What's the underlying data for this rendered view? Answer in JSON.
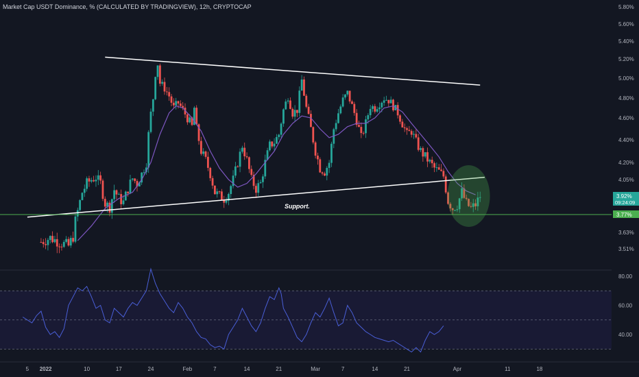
{
  "header": {
    "title": "Market Cap USDT Dominance, % (CALCULATED BY TRADINGVIEW), 12h, CRYPTOCAP"
  },
  "colors": {
    "background": "#131722",
    "bull": "#26a69a",
    "bear": "#ef5350",
    "ma": "#7e57c2",
    "trendline": "#ffffff",
    "support": "#4caf50",
    "highlight": "#4caf50",
    "rsi": "#4a5fd8",
    "rsi_band": "#1c1c3a"
  },
  "chart_data": [
    {
      "type": "candlestick",
      "title": "Market Cap USDT Dominance, % (CALCULATED BY TRADINGVIEW), 12h, CRYPTOCAP",
      "ylim": [
        3.45,
        5.85
      ],
      "y_ticks": [
        "5.80%",
        "5.60%",
        "5.40%",
        "5.20%",
        "5.00%",
        "4.80%",
        "4.60%",
        "4.40%",
        "4.20%",
        "4.05%",
        "3.63%",
        "3.51%"
      ],
      "x_ticks": [
        "5",
        "2022",
        "10",
        "17",
        "24",
        "Feb",
        "7",
        "14",
        "21",
        "Mar",
        "7",
        "14",
        "21",
        "Apr",
        "11",
        "18"
      ],
      "x_tick_days": [
        -27,
        -23,
        -14,
        -7,
        0,
        8,
        14,
        21,
        28,
        36,
        42,
        49,
        56,
        67,
        78,
        85
      ],
      "close_series_points": [
        [
          -24,
          3.56
        ],
        [
          -22,
          3.59
        ],
        [
          -20,
          3.56
        ],
        [
          -18,
          3.53
        ],
        [
          -17,
          3.6
        ],
        [
          -16.5,
          3.72
        ],
        [
          -15,
          3.95
        ],
        [
          -14,
          4.02
        ],
        [
          -13,
          4.05
        ],
        [
          -12,
          4.07
        ],
        [
          -11,
          4.02
        ],
        [
          -10,
          3.86
        ],
        [
          -9,
          3.83
        ],
        [
          -8,
          3.97
        ],
        [
          -7,
          3.9
        ],
        [
          -6,
          3.87
        ],
        [
          -5,
          3.98
        ],
        [
          -4,
          4.06
        ],
        [
          -3,
          4.02
        ],
        [
          -2,
          4.1
        ],
        [
          -1,
          4.2
        ],
        [
          -0.3,
          4.55
        ],
        [
          0.5,
          4.8
        ],
        [
          1,
          5.05
        ],
        [
          1.5,
          5.15
        ],
        [
          2,
          4.95
        ],
        [
          3,
          4.9
        ],
        [
          4,
          4.82
        ],
        [
          5,
          4.7
        ],
        [
          6,
          4.75
        ],
        [
          7,
          4.68
        ],
        [
          8,
          4.6
        ],
        [
          9,
          4.52
        ],
        [
          9.5,
          4.7
        ],
        [
          10,
          4.5
        ],
        [
          11,
          4.3
        ],
        [
          12,
          4.22
        ],
        [
          13,
          4.1
        ],
        [
          14,
          3.95
        ],
        [
          15,
          3.92
        ],
        [
          16,
          3.9
        ],
        [
          17,
          3.95
        ],
        [
          18,
          4.05
        ],
        [
          19,
          4.2
        ],
        [
          20,
          4.35
        ],
        [
          21,
          4.22
        ],
        [
          22,
          4.05
        ],
        [
          23,
          3.98
        ],
        [
          24,
          4.02
        ],
        [
          25,
          4.2
        ],
        [
          26,
          4.35
        ],
        [
          27,
          4.38
        ],
        [
          28,
          4.45
        ],
        [
          29,
          4.68
        ],
        [
          30,
          4.82
        ],
        [
          31,
          4.65
        ],
        [
          32,
          4.68
        ],
        [
          33,
          4.98
        ],
        [
          34,
          4.7
        ],
        [
          35,
          4.5
        ],
        [
          36,
          4.3
        ],
        [
          37,
          4.15
        ],
        [
          38,
          4.12
        ],
        [
          39,
          4.2
        ],
        [
          40,
          4.5
        ],
        [
          41,
          4.65
        ],
        [
          42,
          4.78
        ],
        [
          43,
          4.85
        ],
        [
          44,
          4.72
        ],
        [
          45,
          4.58
        ],
        [
          46,
          4.42
        ],
        [
          47,
          4.55
        ],
        [
          48,
          4.72
        ],
        [
          49,
          4.7
        ],
        [
          50,
          4.75
        ],
        [
          51,
          4.8
        ],
        [
          52,
          4.78
        ],
        [
          53,
          4.72
        ],
        [
          54,
          4.65
        ],
        [
          55,
          4.55
        ],
        [
          56,
          4.45
        ],
        [
          57,
          4.48
        ],
        [
          58,
          4.38
        ],
        [
          59,
          4.3
        ],
        [
          60,
          4.25
        ],
        [
          61,
          4.2
        ],
        [
          62,
          4.15
        ],
        [
          63,
          4.12
        ],
        [
          64,
          4.08
        ],
        [
          65,
          3.88
        ],
        [
          66,
          3.82
        ],
        [
          67,
          3.85
        ],
        [
          68,
          3.95
        ],
        [
          69,
          3.86
        ],
        [
          70,
          3.82
        ],
        [
          71,
          3.85
        ],
        [
          72,
          3.92
        ]
      ],
      "candle_days_range": [
        -24,
        72
      ],
      "candles_per_day": 2,
      "moving_average": {
        "points": [
          [
            -16,
            3.57
          ],
          [
            -13,
            3.68
          ],
          [
            -10,
            3.82
          ],
          [
            -7,
            3.9
          ],
          [
            -4,
            3.95
          ],
          [
            -2,
            4.05
          ],
          [
            0,
            4.2
          ],
          [
            2,
            4.45
          ],
          [
            4,
            4.65
          ],
          [
            5.5,
            4.72
          ],
          [
            7,
            4.7
          ],
          [
            9,
            4.6
          ],
          [
            11,
            4.48
          ],
          [
            13,
            4.3
          ],
          [
            15,
            4.15
          ],
          [
            17,
            4.05
          ],
          [
            19,
            3.99
          ],
          [
            21,
            4.02
          ],
          [
            23,
            4.1
          ],
          [
            25,
            4.2
          ],
          [
            27,
            4.3
          ],
          [
            29,
            4.45
          ],
          [
            31,
            4.55
          ],
          [
            33,
            4.62
          ],
          [
            35,
            4.6
          ],
          [
            37,
            4.5
          ],
          [
            39,
            4.42
          ],
          [
            41,
            4.45
          ],
          [
            43,
            4.52
          ],
          [
            45,
            4.55
          ],
          [
            47,
            4.55
          ],
          [
            49,
            4.6
          ],
          [
            51,
            4.7
          ],
          [
            53,
            4.72
          ],
          [
            55,
            4.66
          ],
          [
            57,
            4.55
          ],
          [
            59,
            4.45
          ],
          [
            61,
            4.35
          ],
          [
            63,
            4.25
          ],
          [
            65,
            4.12
          ],
          [
            67,
            4.02
          ],
          [
            69,
            3.96
          ],
          [
            71,
            3.93
          ]
        ]
      },
      "resistance_line": [
        [
          -10,
          5.22
        ],
        [
          72,
          4.93
        ]
      ],
      "support_line": [
        [
          -27,
          3.75
        ],
        [
          73,
          4.07
        ]
      ],
      "horizontal_line_value": 3.77,
      "highlight_center": [
        69.5,
        3.92
      ],
      "annotation": "Support.",
      "annotation_at": [
        32,
        3.82
      ],
      "price_labels": [
        {
          "value": 3.92,
          "text": "3.92%",
          "countdown": "09:24:09",
          "color": "#26a69a"
        },
        {
          "value": 3.77,
          "text": "3.77%",
          "color": "#4caf50"
        }
      ]
    },
    {
      "type": "line",
      "name": "RSI",
      "ylim": [
        25,
        90
      ],
      "y_ticks": [
        "80.00",
        "60.00",
        "40.00"
      ],
      "bands": [
        30,
        50,
        70
      ],
      "points": [
        [
          -28,
          52
        ],
        [
          -26,
          48
        ],
        [
          -25,
          53
        ],
        [
          -24,
          56
        ],
        [
          -23,
          45
        ],
        [
          -22,
          40
        ],
        [
          -21,
          42
        ],
        [
          -20,
          38
        ],
        [
          -19,
          44
        ],
        [
          -18,
          60
        ],
        [
          -17,
          66
        ],
        [
          -16,
          72
        ],
        [
          -15,
          70
        ],
        [
          -14,
          73
        ],
        [
          -13,
          66
        ],
        [
          -12,
          58
        ],
        [
          -11,
          60
        ],
        [
          -10,
          50
        ],
        [
          -9,
          48
        ],
        [
          -8,
          58
        ],
        [
          -7,
          55
        ],
        [
          -6,
          52
        ],
        [
          -5,
          58
        ],
        [
          -4,
          62
        ],
        [
          -3,
          60
        ],
        [
          -2,
          65
        ],
        [
          -1,
          70
        ],
        [
          0,
          85
        ],
        [
          0.5,
          80
        ],
        [
          1,
          75
        ],
        [
          2,
          68
        ],
        [
          3,
          63
        ],
        [
          4,
          58
        ],
        [
          5,
          55
        ],
        [
          6,
          62
        ],
        [
          7,
          58
        ],
        [
          8,
          52
        ],
        [
          9,
          48
        ],
        [
          10,
          42
        ],
        [
          11,
          38
        ],
        [
          12,
          37
        ],
        [
          13,
          33
        ],
        [
          14,
          31
        ],
        [
          15,
          32
        ],
        [
          16,
          30
        ],
        [
          17,
          40
        ],
        [
          18,
          45
        ],
        [
          19,
          50
        ],
        [
          20,
          58
        ],
        [
          21,
          52
        ],
        [
          22,
          46
        ],
        [
          23,
          42
        ],
        [
          24,
          48
        ],
        [
          25,
          58
        ],
        [
          26,
          66
        ],
        [
          27,
          64
        ],
        [
          28,
          72
        ],
        [
          28.5,
          68
        ],
        [
          29,
          58
        ],
        [
          30,
          52
        ],
        [
          31,
          45
        ],
        [
          32,
          38
        ],
        [
          33,
          35
        ],
        [
          34,
          40
        ],
        [
          35,
          48
        ],
        [
          36,
          55
        ],
        [
          37,
          52
        ],
        [
          38,
          58
        ],
        [
          39,
          65
        ],
        [
          40,
          55
        ],
        [
          41,
          46
        ],
        [
          42,
          48
        ],
        [
          43,
          60
        ],
        [
          44,
          55
        ],
        [
          45,
          48
        ],
        [
          46,
          45
        ],
        [
          47,
          42
        ],
        [
          48,
          40
        ],
        [
          49,
          38
        ],
        [
          50,
          37
        ],
        [
          51,
          36
        ],
        [
          52,
          35
        ],
        [
          53,
          36
        ],
        [
          54,
          34
        ],
        [
          55,
          32
        ],
        [
          56,
          30
        ],
        [
          57,
          28
        ],
        [
          58,
          31
        ],
        [
          59,
          28
        ],
        [
          60,
          36
        ],
        [
          61,
          42
        ],
        [
          62,
          40
        ],
        [
          63,
          42
        ],
        [
          64,
          46
        ]
      ]
    }
  ]
}
